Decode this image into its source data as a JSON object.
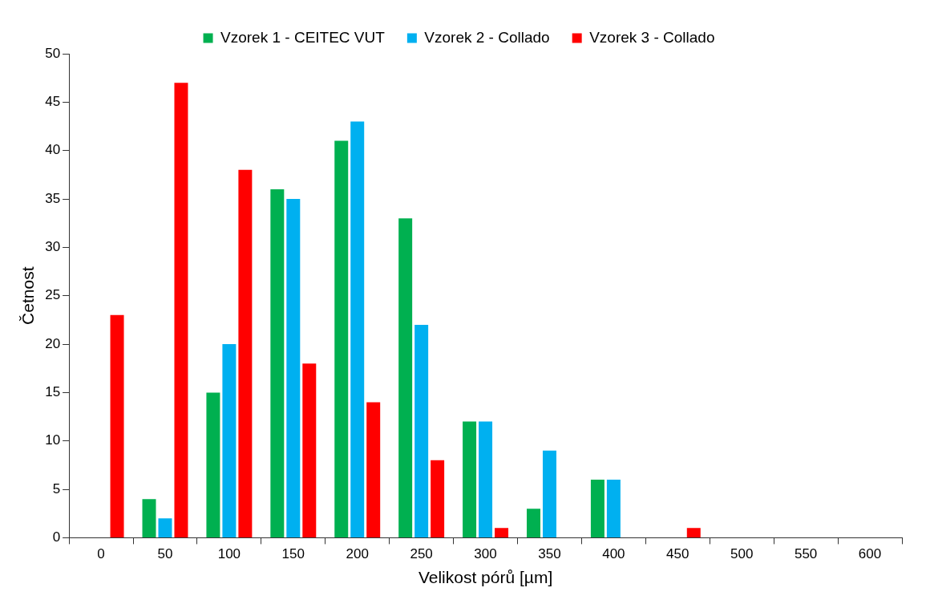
{
  "chart_data": {
    "type": "bar",
    "xlabel": "Velikost pórů [µm]",
    "ylabel": "Četnost",
    "categories": [
      "0",
      "50",
      "100",
      "150",
      "200",
      "250",
      "300",
      "350",
      "400",
      "450",
      "500",
      "550",
      "600"
    ],
    "series": [
      {
        "name": "Vzorek 1 - CEITEC VUT",
        "color": "#00b050",
        "values": [
          0,
          4,
          15,
          36,
          41,
          33,
          12,
          3,
          6,
          0,
          0,
          0,
          0
        ]
      },
      {
        "name": "Vzorek 2 - Collado",
        "color": "#00b0f0",
        "values": [
          0,
          2,
          20,
          35,
          43,
          22,
          12,
          9,
          6,
          0,
          0,
          0,
          0
        ]
      },
      {
        "name": "Vzorek 3 - Collado",
        "color": "#ff0000",
        "values": [
          23,
          47,
          38,
          18,
          14,
          8,
          1,
          0,
          0,
          1,
          0,
          0,
          0
        ]
      }
    ],
    "ylim": [
      0,
      50
    ],
    "yticks": [
      0,
      5,
      10,
      15,
      20,
      25,
      30,
      35,
      40,
      45,
      50
    ],
    "grid": false,
    "legend": "top"
  }
}
